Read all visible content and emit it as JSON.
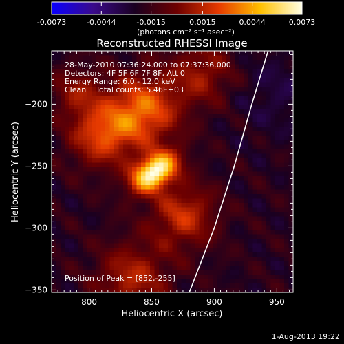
{
  "colorbar": {
    "tick_labels": [
      "-0.0073",
      "-0.0044",
      "-0.0015",
      "0.0015",
      "0.0044",
      "0.0073"
    ],
    "range": [
      -0.0073,
      0.0073
    ],
    "unit_label": "(photons cm⁻² s⁻¹ asec⁻²)",
    "colors": [
      "#0a00ff",
      "#3a0a8a",
      "#1a0020",
      "#6e0000",
      "#e63a00",
      "#ffc000",
      "#ffffe6"
    ]
  },
  "chart_data": {
    "type": "heatmap",
    "title": "Reconstructed RHESSI Image",
    "xlabel": "Heliocentric X (arcsec)",
    "ylabel": "Heliocentric Y (arcsec)",
    "xlim": [
      770,
      963
    ],
    "ylim": [
      -352,
      -157
    ],
    "xticks": [
      800,
      850,
      900,
      950
    ],
    "yticks": [
      -200,
      -250,
      -300,
      -350
    ],
    "annotations": [
      "28-May-2010 07:36:24.000 to 07:37:36.000",
      "Detectors: 4F 5F 6F 7F 8F, Att 0",
      "Energy Range: 6.0 - 12.0 keV",
      "Clean    Total counts: 5.46E+03"
    ],
    "peak_label": "Position of Peak = [852,-255]",
    "peak": {
      "x": 852,
      "y": -255,
      "value": 0.0073
    },
    "limb_curve": [
      [
        880,
        -352
      ],
      [
        900,
        -300
      ],
      [
        916,
        -250
      ],
      [
        930,
        -200
      ],
      [
        943,
        -157
      ]
    ]
  },
  "footer": {
    "date": "1-Aug-2013 19:22"
  }
}
